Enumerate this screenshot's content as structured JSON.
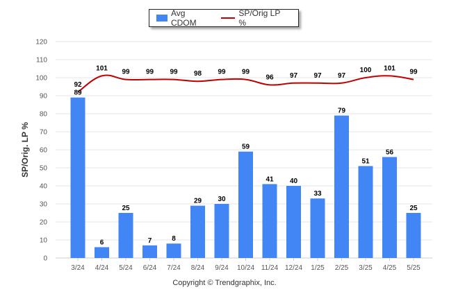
{
  "legend": {
    "bar_label": "Avg CDOM",
    "line_label": "SP/Orig LP %"
  },
  "copyright": "Copyright © Trendgraphix, Inc.",
  "colors": {
    "bar": "#4285f4",
    "line": "#c00000",
    "grid": "#e6e6e6",
    "axis": "#cccccc"
  },
  "chart_data": {
    "type": "bar",
    "categories": [
      "3/24",
      "4/24",
      "5/24",
      "6/24",
      "7/24",
      "8/24",
      "9/24",
      "10/24",
      "11/24",
      "12/24",
      "1/25",
      "2/25",
      "3/25",
      "4/25",
      "5/25"
    ],
    "series": [
      {
        "name": "Avg CDOM",
        "type": "bar",
        "values": [
          89,
          6,
          25,
          7,
          8,
          29,
          30,
          59,
          41,
          40,
          33,
          79,
          51,
          56,
          25
        ]
      },
      {
        "name": "SP/Orig LP %",
        "type": "line",
        "values": [
          92,
          101,
          99,
          99,
          99,
          98,
          99,
          99,
          96,
          97,
          97,
          97,
          100,
          101,
          99
        ]
      }
    ],
    "title": "",
    "xlabel": "",
    "ylabel": "SP/Orig. LP %",
    "ylim": [
      0,
      120
    ],
    "yticks": [
      0,
      10,
      20,
      30,
      40,
      50,
      60,
      70,
      80,
      90,
      100,
      110,
      120
    ],
    "grid": true,
    "legend_position": "top-center"
  }
}
